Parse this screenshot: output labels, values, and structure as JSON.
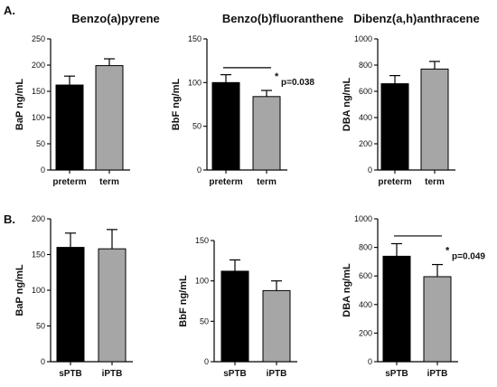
{
  "panels": [
    {
      "letter": "A."
    },
    {
      "letter": "B."
    }
  ],
  "colors": {
    "bar_group_1": "#000000",
    "bar_group_2": "#a6a6a6"
  },
  "chart_data": [
    {
      "type": "bar",
      "panel": "A.",
      "title": "Benzo(a)pyrene",
      "ylabel": "BaP ng/mL",
      "categories": [
        "preterm",
        "term"
      ],
      "values": [
        162,
        199
      ],
      "errors": [
        17,
        13
      ],
      "ylim": [
        0,
        250
      ],
      "yticks": [
        0,
        50,
        100,
        150,
        200,
        250
      ],
      "annotation": null
    },
    {
      "type": "bar",
      "panel": "A.",
      "title": "Benzo(b)fluoranthene",
      "ylabel": "BbF ng/mL",
      "categories": [
        "preterm",
        "term"
      ],
      "values": [
        100,
        84
      ],
      "errors": [
        9,
        7
      ],
      "ylim": [
        0,
        150
      ],
      "yticks": [
        0,
        50,
        100,
        150
      ],
      "annotation": {
        "star": "*",
        "text": "p=0.038",
        "line_y": 117
      }
    },
    {
      "type": "bar",
      "panel": "A.",
      "title": "Dibenz(a,h)anthracene",
      "ylabel": "DBA ng/mL",
      "categories": [
        "preterm",
        "term"
      ],
      "values": [
        658,
        770
      ],
      "errors": [
        62,
        58
      ],
      "ylim": [
        0,
        1000
      ],
      "yticks": [
        0,
        200,
        400,
        600,
        800,
        1000
      ],
      "annotation": null
    },
    {
      "type": "bar",
      "panel": "B.",
      "title": "",
      "ylabel": "BaP ng/mL",
      "categories": [
        "sPTB",
        "iPTB"
      ],
      "values": [
        160,
        158
      ],
      "errors": [
        20,
        27
      ],
      "ylim": [
        0,
        200
      ],
      "yticks": [
        0,
        50,
        100,
        150,
        200
      ],
      "annotation": null
    },
    {
      "type": "bar",
      "panel": "B.",
      "title": "",
      "ylabel": "BbF ng/mL",
      "categories": [
        "sPTB",
        "iPTB"
      ],
      "values": [
        112,
        88
      ],
      "errors": [
        14,
        12
      ],
      "ylim": [
        0,
        150
      ],
      "yticks": [
        0,
        50,
        100,
        150
      ],
      "annotation": null
    },
    {
      "type": "bar",
      "panel": "B.",
      "title": "",
      "ylabel": "DBA ng/mL",
      "categories": [
        "sPTB",
        "iPTB"
      ],
      "values": [
        738,
        595
      ],
      "errors": [
        88,
        85
      ],
      "ylim": [
        0,
        1000
      ],
      "yticks": [
        0,
        200,
        400,
        600,
        800,
        1000
      ],
      "annotation": {
        "star": "*",
        "text": "p=0.049",
        "line_y": 880
      }
    }
  ]
}
